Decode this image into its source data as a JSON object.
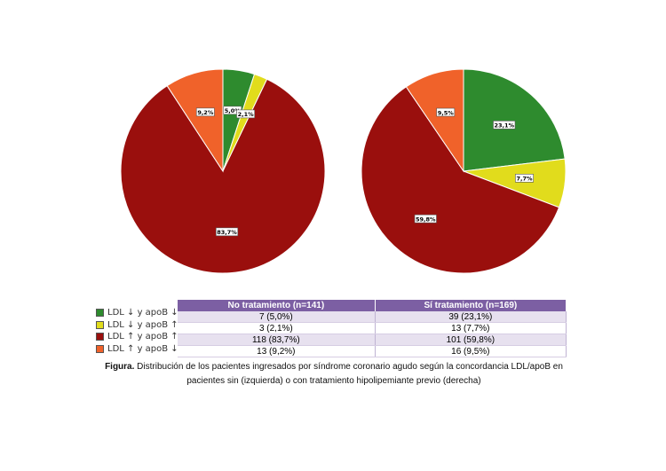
{
  "chart_data": [
    {
      "type": "pie",
      "categories": [
        "LDL ↓ y apoB ↓",
        "LDL ↓ y apoB ↑",
        "LDL ↑ y apoB ↑",
        "LDL ↑ y apoB ↓"
      ],
      "values": [
        5.0,
        2.1,
        83.7,
        9.2
      ],
      "labels": [
        "5,0%",
        "2,1%",
        "83,7%",
        "9,2%"
      ]
    },
    {
      "type": "pie",
      "categories": [
        "LDL ↓ y apoB ↓",
        "LDL ↓ y apoB ↑",
        "LDL ↑ y apoB ↑",
        "LDL ↑ y apoB ↓"
      ],
      "values": [
        23.1,
        7.7,
        59.8,
        9.5
      ],
      "labels": [
        "23,1%",
        "7,7%",
        "59,8%",
        "9,5%"
      ]
    }
  ],
  "colors": [
    "#2e8b2e",
    "#e1dc1c",
    "#9a0f0d",
    "#f0622a"
  ],
  "legend": [
    {
      "label": "LDL ↓ y apoB ↓",
      "color": "#2e8b2e"
    },
    {
      "label": "LDL ↓ y apoB ↑",
      "color": "#e1dc1c"
    },
    {
      "label": "LDL ↑ y apoB ↑",
      "color": "#9a0f0d"
    },
    {
      "label": "LDL ↑ y apoB ↓",
      "color": "#f0622a"
    }
  ],
  "table": {
    "headers": [
      "No tratamiento (n=141)",
      "Sí tratamiento (n=169)"
    ],
    "rows": [
      [
        "7 (5,0%)",
        "39 (23,1%)"
      ],
      [
        "3 (2,1%)",
        "13 (7,7%)"
      ],
      [
        "118 (83,7%)",
        "101 (59,8%)"
      ],
      [
        "13 (9,2%)",
        "16 (9,5%)"
      ]
    ]
  },
  "caption": {
    "bold": "Figura.",
    "text": " Distribución de los pacientes ingresados por síndrome coronario agudo según la concordancia LDL/apoB en pacientes sin (izquierda) o con tratamiento hipolipemiante previo (derecha)"
  }
}
